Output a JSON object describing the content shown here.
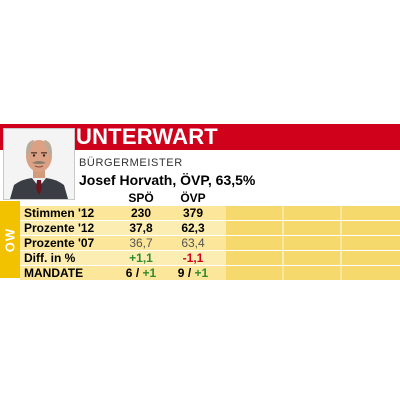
{
  "municipality": "UNTERWART",
  "region": "OW",
  "mayor": {
    "role": "BÜRGERMEISTER",
    "name": "Josef Horvath, ÖVP, 63,5%"
  },
  "table": {
    "columns": [
      "SPÖ",
      "ÖVP"
    ],
    "rows": [
      {
        "label": "Stimmen '12",
        "values": [
          "230",
          "379"
        ]
      },
      {
        "label": "Prozente '12",
        "values": [
          "37,8",
          "62,3"
        ]
      },
      {
        "label": "Prozente '07",
        "values": [
          "36,7",
          "63,4"
        ]
      },
      {
        "label": "Diff. in %",
        "values": [
          "+1,1",
          "-1,1"
        ]
      },
      {
        "label": "MANDATE",
        "values": [
          "6",
          "9"
        ],
        "diffs": [
          "+1",
          "+1"
        ],
        "separator": "/"
      }
    ]
  },
  "colors": {
    "accent_red": "#d0021b",
    "accent_yellow": "#f2c100",
    "row_fill": "#fbe69a",
    "positive": "#2e8b2e",
    "negative": "#d0021b"
  }
}
